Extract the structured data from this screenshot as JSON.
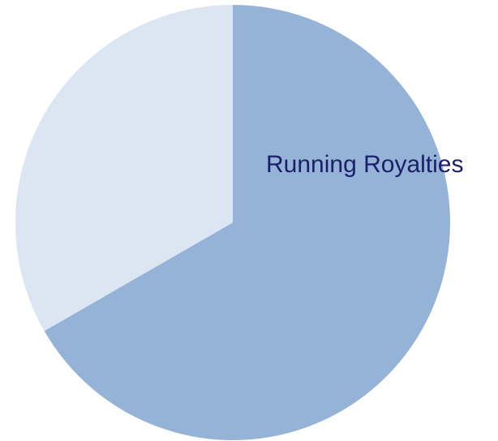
{
  "chart_data": {
    "type": "pie",
    "title": "",
    "start_angle_deg": 0,
    "direction": "clockwise",
    "slices": [
      {
        "label": "Running Royalties",
        "value": 66.7,
        "color": "#95b3d7"
      },
      {
        "label": "",
        "value": 33.3,
        "color": "#dce6f2"
      }
    ],
    "legend": "none"
  }
}
